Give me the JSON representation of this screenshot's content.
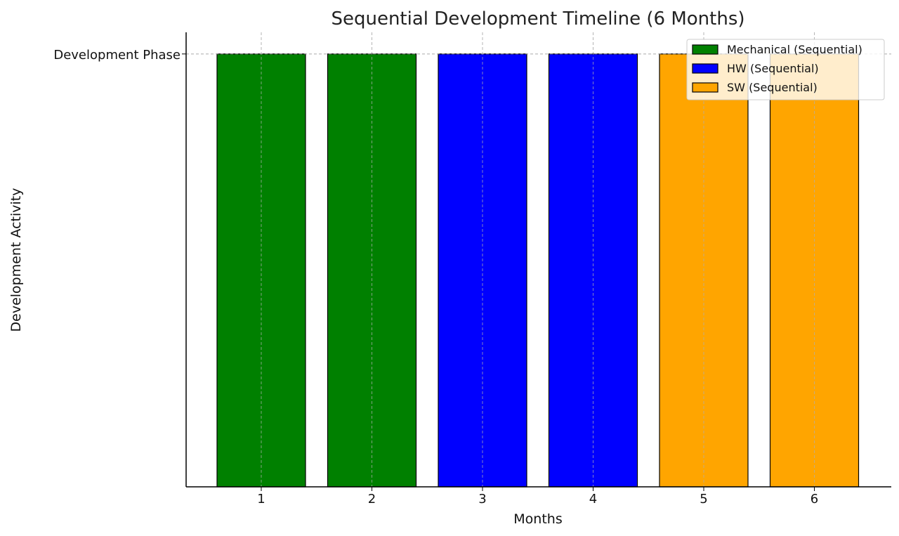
{
  "chart_data": {
    "type": "bar",
    "title": "Sequential Development Timeline (6 Months)",
    "xlabel": "Months",
    "ylabel": "Development Activity",
    "categories": [
      "1",
      "2",
      "3",
      "4",
      "5",
      "6"
    ],
    "y_tick_labels": [
      "Development Phase"
    ],
    "ylim": [
      0,
      1.05
    ],
    "grid": true,
    "legend_position": "top-right",
    "series": [
      {
        "name": "Mechanical (Sequential)",
        "color": "#008000",
        "values": [
          1,
          1,
          0,
          0,
          0,
          0
        ]
      },
      {
        "name": "HW (Sequential)",
        "color": "#0000ff",
        "values": [
          0,
          0,
          1,
          1,
          0,
          0
        ]
      },
      {
        "name": "SW (Sequential)",
        "color": "#ffa500",
        "values": [
          0,
          0,
          0,
          0,
          1,
          1
        ]
      }
    ]
  }
}
